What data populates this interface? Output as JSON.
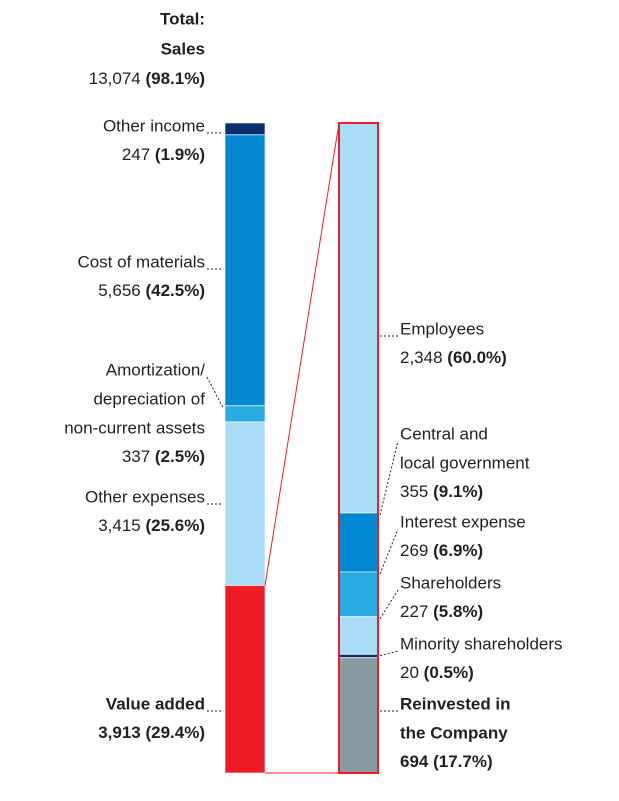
{
  "total": {
    "label_lines": [
      "Total:",
      "Sales"
    ],
    "value_label": "13,074",
    "percent_label": "(98.1%)"
  },
  "chart_data": {
    "type": "value-flow",
    "bars": [
      {
        "segments": [
          {
            "label_lines": [
              "Other income"
            ],
            "value": 247,
            "value_label": "247",
            "percent_label": "(1.9%)",
            "color": "#0a2d6e",
            "bold_name": false
          },
          {
            "label_lines": [
              "Cost of materials"
            ],
            "value": 5656,
            "value_label": "5,656",
            "percent_label": "(42.5%)",
            "color": "#0288d1",
            "bold_name": false
          },
          {
            "label_lines": [
              "Amortization/",
              "depreciation of",
              "non-current assets"
            ],
            "value": 337,
            "value_label": "337",
            "percent_label": "(2.5%)",
            "color": "#29abe2",
            "bold_name": false
          },
          {
            "label_lines": [
              "Other expenses"
            ],
            "value": 3415,
            "value_label": "3,415",
            "percent_label": "(25.6%)",
            "color": "#a9dcf7",
            "bold_name": false
          },
          {
            "label_lines": [
              "Value added"
            ],
            "value": 3913,
            "value_label": "3,913",
            "percent_label": "(29.4%)",
            "color": "#ee1c25",
            "bold_name": true
          }
        ]
      },
      {
        "segments": [
          {
            "label_lines": [
              "Employees"
            ],
            "value": 2348,
            "value_label": "2,348",
            "percent_label": "(60.0%)",
            "color": "#a9dcf7",
            "bold_name": false
          },
          {
            "label_lines": [
              "Central and",
              "local government"
            ],
            "value": 355,
            "value_label": "355",
            "percent_label": "(9.1%)",
            "color": "#0288d1",
            "bold_name": false
          },
          {
            "label_lines": [
              "Interest expense"
            ],
            "value": 269,
            "value_label": "269",
            "percent_label": "(6.9%)",
            "color": "#29abe2",
            "bold_name": false
          },
          {
            "label_lines": [
              "Shareholders"
            ],
            "value": 227,
            "value_label": "227",
            "percent_label": "(5.8%)",
            "color": "#a9dcf7",
            "bold_name": false
          },
          {
            "label_lines": [
              "Minority shareholders"
            ],
            "value": 20,
            "value_label": "20",
            "percent_label": "(0.5%)",
            "color": "#0a2d6e",
            "bold_name": false
          },
          {
            "label_lines": [
              "Reinvested in",
              "the Company"
            ],
            "value": 694,
            "value_label": "694",
            "percent_label": "(17.7%)",
            "color": "#8a9aa3",
            "bold_name": true
          }
        ]
      }
    ]
  }
}
